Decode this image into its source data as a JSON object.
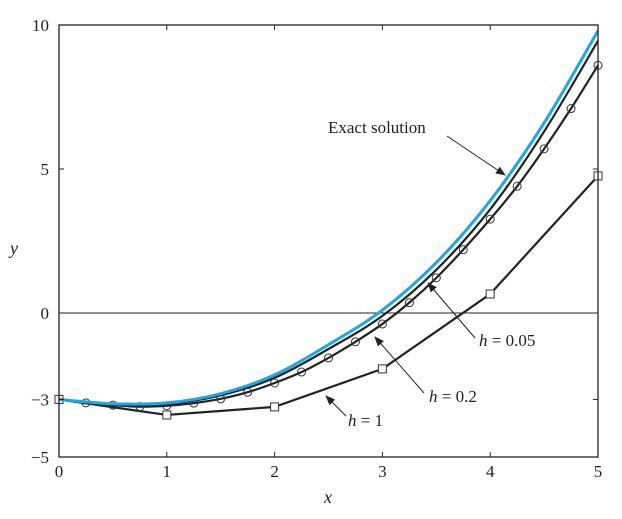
{
  "chart_data": {
    "type": "line",
    "title": "",
    "xlabel": "x",
    "ylabel": "y",
    "xlim": [
      0,
      5
    ],
    "ylim": [
      -5,
      10
    ],
    "xticks": [
      "0",
      "1",
      "2",
      "3",
      "4",
      "5"
    ],
    "yticks": [
      {
        "value": 10,
        "label": "10"
      },
      {
        "value": 5,
        "label": "5"
      },
      {
        "value": 0,
        "label": "0"
      },
      {
        "value": -3,
        "label": "−3"
      },
      {
        "value": -5,
        "label": "−5"
      }
    ],
    "grid": false,
    "zero_line": true,
    "series": [
      {
        "name": "Exact solution",
        "color": "#1ea7e1",
        "marker": "none",
        "x": [
          0,
          0.5,
          1,
          1.5,
          2,
          2.5,
          3,
          3.5,
          4,
          4.5,
          5
        ],
        "y": [
          -3,
          -3.15,
          -3.12,
          -2.8,
          -2.15,
          -1.1,
          0.1,
          1.75,
          3.9,
          6.6,
          9.8
        ]
      },
      {
        "name": "h = 0.05",
        "color": "#222222",
        "marker": "none",
        "x": [
          0,
          0.5,
          1,
          1.5,
          2,
          2.5,
          3,
          3.5,
          4,
          4.5,
          5
        ],
        "y": [
          -3,
          -3.16,
          -3.15,
          -2.86,
          -2.25,
          -1.25,
          -0.1,
          1.5,
          3.6,
          6.3,
          9.45
        ]
      },
      {
        "name": "h = 0.2",
        "color": "#222222",
        "marker": "circle",
        "x": [
          0,
          0.25,
          0.5,
          0.75,
          1,
          1.25,
          1.5,
          1.75,
          2,
          2.25,
          2.5,
          2.75,
          3,
          3.25,
          3.5,
          3.75,
          4,
          4.25,
          4.5,
          4.75,
          5
        ],
        "y": [
          -3,
          -3.12,
          -3.2,
          -3.25,
          -3.22,
          -3.13,
          -2.98,
          -2.75,
          -2.43,
          -2.05,
          -1.56,
          -1.0,
          -0.38,
          0.36,
          1.22,
          2.2,
          3.26,
          4.4,
          5.7,
          7.1,
          8.6
        ]
      },
      {
        "name": "h = 1",
        "color": "#222222",
        "marker": "square",
        "x": [
          0,
          1,
          2,
          3,
          4,
          5
        ],
        "y": [
          -3,
          -3.54,
          -3.26,
          -1.94,
          0.66,
          4.76
        ]
      }
    ],
    "annotations": [
      {
        "text": "Exact solution",
        "italic_prefix": "",
        "target_series": "Exact solution"
      },
      {
        "text": " = 0.05",
        "italic_prefix": "h",
        "target_series": "h = 0.05"
      },
      {
        "text": " = 0.2",
        "italic_prefix": "h",
        "target_series": "h = 0.2"
      },
      {
        "text": " = 1",
        "italic_prefix": "h",
        "target_series": "h = 1"
      }
    ]
  }
}
